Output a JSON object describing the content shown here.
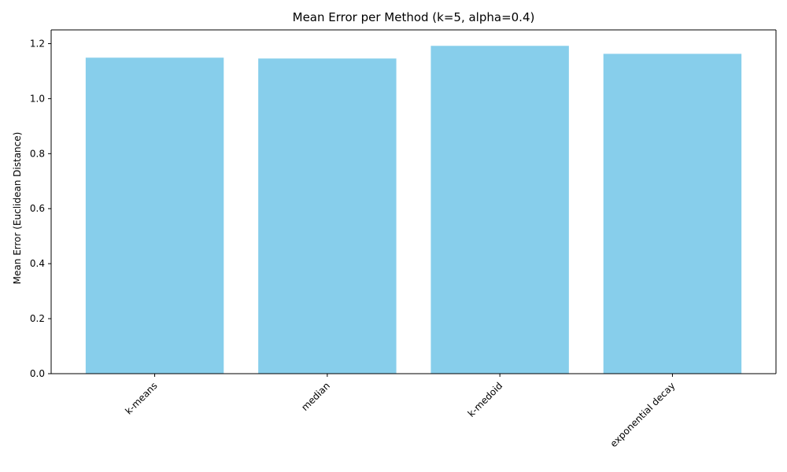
{
  "chart_data": {
    "type": "bar",
    "title": "Mean Error per Method (k=5, alpha=0.4)",
    "xlabel": "",
    "ylabel": "Mean Error (Euclidean Distance)",
    "categories": [
      "k-means",
      "median",
      "k-medoid",
      "exponential decay"
    ],
    "values": [
      1.149,
      1.146,
      1.192,
      1.163
    ],
    "ylim": [
      0,
      1.25
    ],
    "yticks": [
      0.0,
      0.2,
      0.4,
      0.6,
      0.8,
      1.0,
      1.2
    ],
    "ytick_labels": [
      "0.0",
      "0.2",
      "0.4",
      "0.6",
      "0.8",
      "1.0",
      "1.2"
    ],
    "xtick_rotation_deg": 45,
    "grid": false,
    "legend": "none",
    "bar_color": "#87CEEB"
  }
}
